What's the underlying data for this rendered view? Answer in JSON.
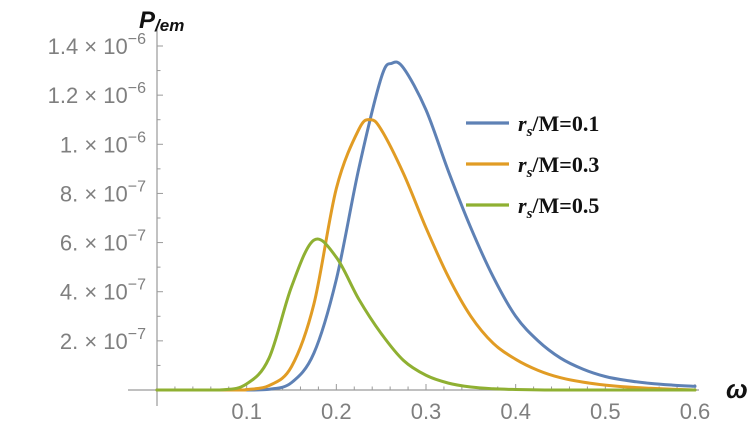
{
  "chart_data": {
    "type": "line",
    "title": "",
    "xlabel": "ω",
    "ylabel_main": "P",
    "ylabel_sub": "/em",
    "xlim": [
      0,
      0.6
    ],
    "ylim": [
      0,
      1.4e-06
    ],
    "xticks": [
      {
        "v": 0.1,
        "label": "0.1"
      },
      {
        "v": 0.2,
        "label": "0.2"
      },
      {
        "v": 0.3,
        "label": "0.3"
      },
      {
        "v": 0.4,
        "label": "0.4"
      },
      {
        "v": 0.5,
        "label": "0.5"
      },
      {
        "v": 0.6,
        "label": "0.6"
      }
    ],
    "yticks": [
      {
        "v": 2e-07,
        "mant": "2.",
        "times": "×",
        "base": "10",
        "exp": "−7"
      },
      {
        "v": 4e-07,
        "mant": "4.",
        "times": "×",
        "base": "10",
        "exp": "−7"
      },
      {
        "v": 6e-07,
        "mant": "6.",
        "times": "×",
        "base": "10",
        "exp": "−7"
      },
      {
        "v": 8e-07,
        "mant": "8.",
        "times": "×",
        "base": "10",
        "exp": "−7"
      },
      {
        "v": 1e-06,
        "mant": "1.",
        "times": "×",
        "base": "10",
        "exp": "−6"
      },
      {
        "v": 1.2e-06,
        "mant": "1.2",
        "times": "×",
        "base": "10",
        "exp": "−6"
      },
      {
        "v": 1.4e-06,
        "mant": "1.4",
        "times": "×",
        "base": "10",
        "exp": "−6"
      }
    ],
    "legend_placement": "right",
    "series": [
      {
        "name": "r_s/M=0.1",
        "name_var": "r",
        "name_sub": "s",
        "name_rest": "/M=0.1",
        "color": "#5e81b5",
        "x": [
          0.0,
          0.1,
          0.125,
          0.15,
          0.175,
          0.2,
          0.225,
          0.25,
          0.262,
          0.275,
          0.3,
          0.325,
          0.35,
          0.375,
          0.4,
          0.425,
          0.45,
          0.475,
          0.5,
          0.525,
          0.55,
          0.575,
          0.6
        ],
        "values": [
          0.0,
          0.0,
          3e-09,
          3e-08,
          1.5e-07,
          4.5e-07,
          9e-07,
          1.27e-06,
          1.33e-06,
          1.31e-06,
          1.14e-06,
          8.9e-07,
          6.6e-07,
          4.6e-07,
          3e-07,
          2e-07,
          1.3e-07,
          8.5e-08,
          5.5e-08,
          3.8e-08,
          2.7e-08,
          2e-08,
          1.5e-08
        ]
      },
      {
        "name": "r_s/M=0.3",
        "name_var": "r",
        "name_sub": "s",
        "name_rest": "/M=0.3",
        "color": "#e19c24",
        "x": [
          0.0,
          0.09,
          0.1,
          0.125,
          0.15,
          0.175,
          0.2,
          0.225,
          0.238,
          0.25,
          0.275,
          0.3,
          0.325,
          0.35,
          0.375,
          0.4,
          0.425,
          0.45,
          0.475,
          0.5,
          0.525,
          0.55,
          0.575,
          0.6
        ],
        "values": [
          0.0,
          0.0,
          2e-09,
          1.8e-08,
          9.5e-08,
          3.5e-07,
          8.2e-07,
          1.06e-06,
          1.1e-06,
          1.06e-06,
          8.8e-07,
          6.6e-07,
          4.6e-07,
          3e-07,
          1.9e-07,
          1.25e-07,
          8e-08,
          5e-08,
          3.2e-08,
          2e-08,
          1.2e-08,
          7e-09,
          3e-09,
          0.0
        ]
      },
      {
        "name": "r_s/M=0.5",
        "name_var": "r",
        "name_sub": "s",
        "name_rest": "/M=0.5",
        "color": "#8fb032",
        "x": [
          0.0,
          0.07,
          0.1,
          0.125,
          0.15,
          0.175,
          0.2,
          0.225,
          0.25,
          0.275,
          0.3,
          0.325,
          0.35,
          0.375,
          0.4,
          0.425,
          0.45,
          0.5,
          0.6
        ],
        "values": [
          0.0,
          0.0,
          2.5e-08,
          1.3e-07,
          4.2e-07,
          6.1e-07,
          5.4e-07,
          3.7e-07,
          2.3e-07,
          1.2e-07,
          6e-08,
          2.8e-08,
          1.2e-08,
          5e-09,
          2e-09,
          5e-10,
          0.0,
          0.0,
          0.0
        ]
      }
    ]
  }
}
